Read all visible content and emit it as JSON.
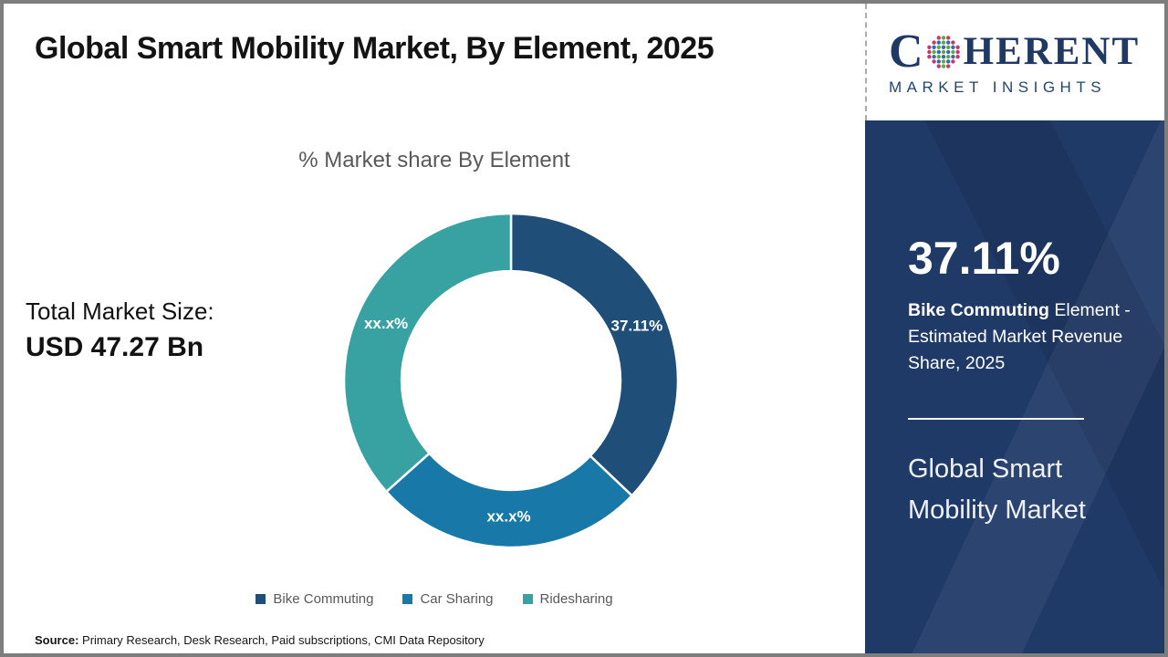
{
  "header": {
    "title": "Global Smart Mobility Market, By Element, 2025"
  },
  "logo": {
    "word_start": "C",
    "word_end": "HERENT",
    "tagline": "MARKET INSIGHTS",
    "navy": "#1F3864"
  },
  "chart_data": {
    "type": "pie",
    "subtype": "donut",
    "title": "% Market share By Element",
    "categories": [
      "Bike Commuting",
      "Car Sharing",
      "Ridesharing"
    ],
    "values": [
      37.11,
      26.3,
      36.59
    ],
    "value_note": "Car Sharing and Ridesharing values are masked as xx.x% in the chart; numbers estimated from arc angles",
    "display_labels": [
      "37.11%",
      "xx.x%",
      "xx.x%"
    ],
    "colors": [
      "#1F4E78",
      "#1878A8",
      "#38A2A2"
    ],
    "start_angle_deg": 0,
    "direction": "clockwise",
    "inner_radius_ratio": 0.655,
    "label_radius_ratio": 0.82,
    "legend_position": "bottom",
    "total_market_size_label": "Total Market Size:",
    "total_market_size_value": "USD 47.27 Bn"
  },
  "sidebar": {
    "background": "#203A68",
    "stat_value": "37.11%",
    "stat_desc_bold": "Bike Commuting",
    "stat_desc_rest": " Element - Estimated Market Revenue Share, 2025",
    "panel_title": "Global Smart Mobility Market"
  },
  "footer": {
    "source_label": "Source:",
    "source_text": " Primary Research, Desk Research, Paid subscriptions, CMI Data Repository"
  }
}
